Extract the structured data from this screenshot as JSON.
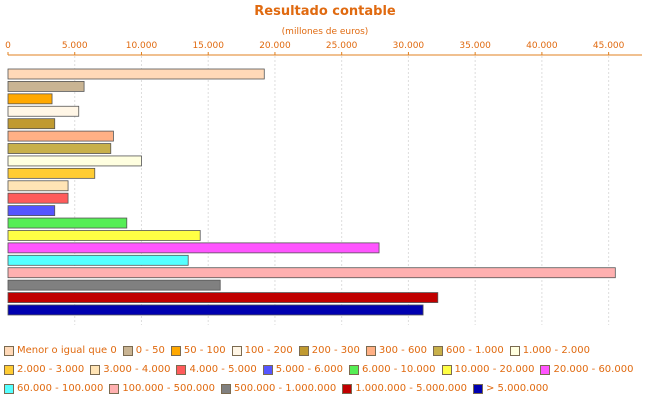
{
  "chart_data": {
    "type": "bar",
    "orientation": "horizontal",
    "title": "Resultado contable",
    "subtitle": "(millones de euros)",
    "xlim": [
      0,
      47500
    ],
    "ticks": [
      "0",
      "5.000",
      "10.000",
      "15.000",
      "20.000",
      "25.000",
      "30.000",
      "35.000",
      "40.000",
      "45.000"
    ],
    "tick_values": [
      0,
      5000,
      10000,
      15000,
      20000,
      25000,
      30000,
      35000,
      40000,
      45000
    ],
    "grid": true,
    "axis_position": "top",
    "legend_position": "bottom",
    "categories": [
      "Menor o igual que 0",
      "0 - 50",
      "50 - 100",
      "100 - 200",
      "200 - 300",
      "300 - 600",
      "600 - 1.000",
      "1.000 - 2.000",
      "2.000 - 3.000",
      "3.000 - 4.000",
      "4.000 - 5.000",
      "5.000 - 6.000",
      "6.000 - 10.000",
      "10.000 - 20.000",
      "20.000 - 60.000",
      "60.000 - 100.000",
      "100.000 - 500.000",
      "500.000 - 1.000.000",
      "1.000.000 - 5.000.000",
      "> 5.000.000"
    ],
    "values": [
      19200,
      5700,
      3300,
      5300,
      3500,
      7900,
      7700,
      10000,
      6500,
      4500,
      4500,
      3500,
      8900,
      14400,
      27800,
      13500,
      45500,
      15900,
      32200,
      31100
    ],
    "colors": [
      "#ffd9b8",
      "#c9b493",
      "#ffa800",
      "#fff6e6",
      "#c09a30",
      "#ffb085",
      "#c8b04a",
      "#ffffe0",
      "#ffcc33",
      "#ffe4b5",
      "#ff5b5b",
      "#5555ff",
      "#55ee55",
      "#ffff44",
      "#ff55ff",
      "#55ffff",
      "#ffb0b0",
      "#808080",
      "#c00000",
      "#0000b0"
    ]
  }
}
